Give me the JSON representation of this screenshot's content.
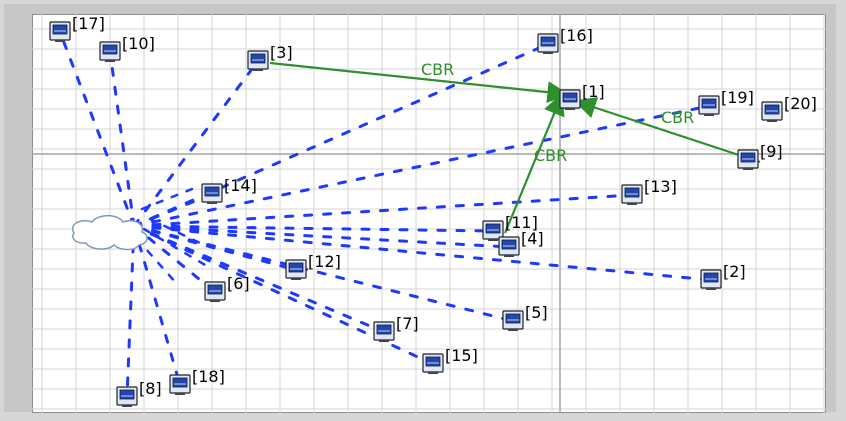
{
  "simulator": {
    "nodes": [
      {
        "id": "17",
        "label": "[17]"
      },
      {
        "id": "10",
        "label": "[10]"
      },
      {
        "id": "3",
        "label": "[3]"
      },
      {
        "id": "16",
        "label": "[16]"
      },
      {
        "id": "1",
        "label": "[1]"
      },
      {
        "id": "19",
        "label": "[19]"
      },
      {
        "id": "20",
        "label": "[20]"
      },
      {
        "id": "9",
        "label": "[9]"
      },
      {
        "id": "13",
        "label": "[13]"
      },
      {
        "id": "14",
        "label": "[14]"
      },
      {
        "id": "11",
        "label": "[11]"
      },
      {
        "id": "4",
        "label": "[4]"
      },
      {
        "id": "12",
        "label": "[12]"
      },
      {
        "id": "6",
        "label": "[6]"
      },
      {
        "id": "2",
        "label": "[2]"
      },
      {
        "id": "5",
        "label": "[5]"
      },
      {
        "id": "7",
        "label": "[7]"
      },
      {
        "id": "15",
        "label": "[15]"
      },
      {
        "id": "18",
        "label": "[18]"
      },
      {
        "id": "8",
        "label": "[8]"
      }
    ],
    "cbr_links": [
      {
        "from": "3",
        "to": "1",
        "label": "CBR"
      },
      {
        "from": "11",
        "to": "1",
        "label": "CBR"
      },
      {
        "from": "9",
        "to": "1",
        "label": "CBR"
      }
    ],
    "colors": {
      "background": "#d7d7d7",
      "canvas": "#ffffff",
      "grid": "#d6d6d6",
      "axis": "#a4a4a4",
      "dotted_link": "#1f38ff",
      "cbr": "#2f8f2f"
    }
  }
}
